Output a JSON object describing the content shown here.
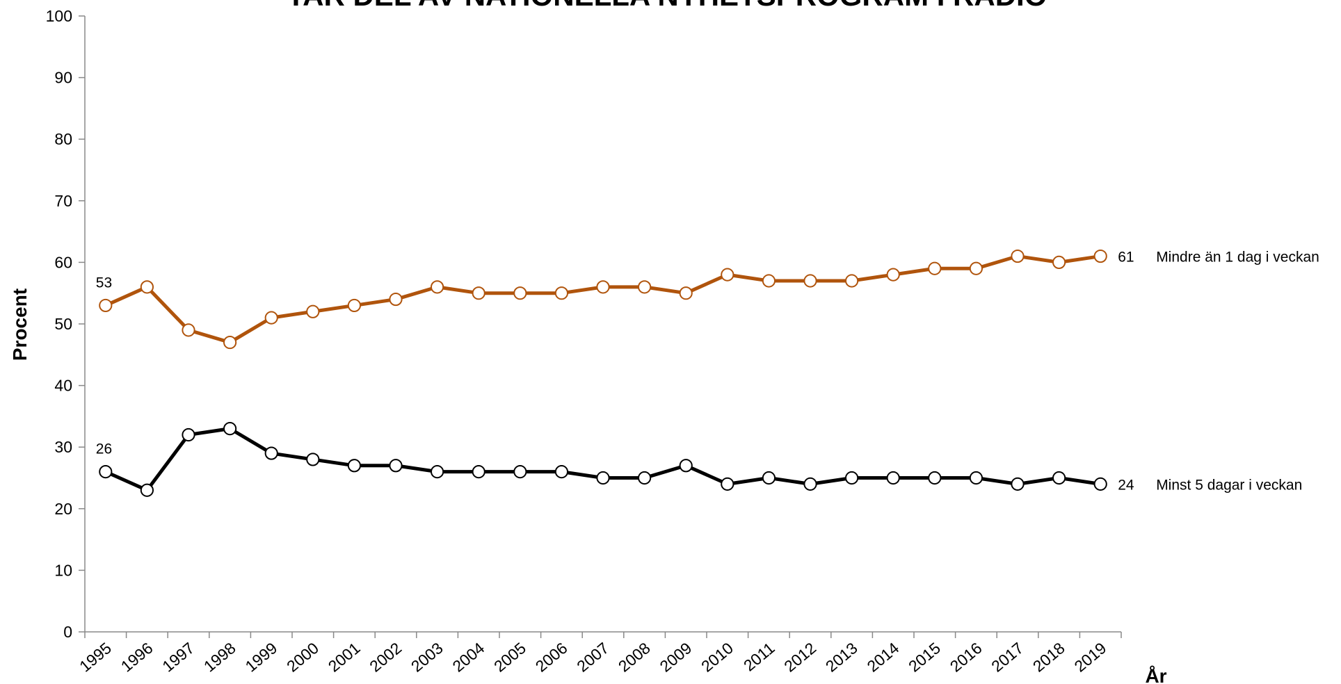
{
  "chart_data": {
    "type": "line",
    "title": "TAR DEL AV NATIONELLA NYHETSPROGRAM I RADIO",
    "y_label": "Procent",
    "x_label": "År",
    "categories": [
      "1995",
      "1996",
      "1997",
      "1998",
      "1999",
      "2000",
      "2001",
      "2002",
      "2003",
      "2004",
      "2005",
      "2006",
      "2007",
      "2008",
      "2009",
      "2010",
      "2011",
      "2012",
      "2013",
      "2014",
      "2015",
      "2016",
      "2017",
      "2018",
      "2019"
    ],
    "series": [
      {
        "name": "Mindre än 1 dag i veckan",
        "color": "#b0540c",
        "values": [
          53,
          56,
          49,
          47,
          51,
          52,
          53,
          54,
          56,
          55,
          55,
          55,
          56,
          56,
          55,
          58,
          57,
          57,
          57,
          58,
          59,
          59,
          61,
          60,
          61
        ]
      },
      {
        "name": "Minst 5 dagar i veckan",
        "color": "#000000",
        "values": [
          26,
          23,
          32,
          33,
          29,
          28,
          27,
          27,
          26,
          26,
          26,
          26,
          25,
          25,
          27,
          24,
          25,
          24,
          25,
          25,
          25,
          25,
          24,
          25,
          24
        ]
      }
    ],
    "ylim": [
      0,
      100
    ],
    "yticks": [
      0,
      10,
      20,
      30,
      40,
      50,
      60,
      70,
      80,
      90,
      100
    ],
    "grid": false
  }
}
